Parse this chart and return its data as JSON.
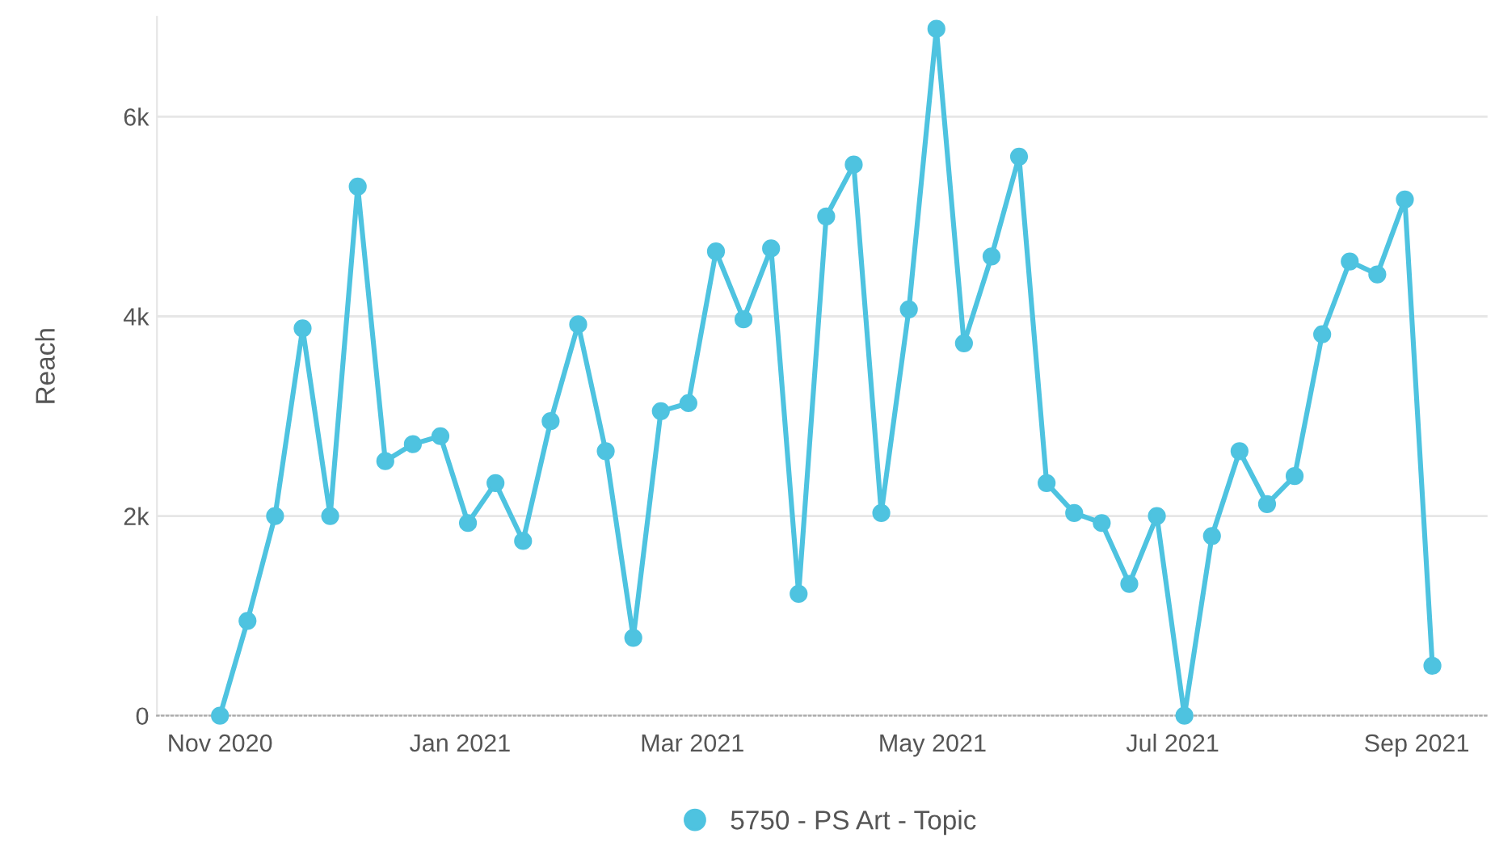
{
  "chart_data": {
    "type": "line",
    "ylabel": "Reach",
    "x": [
      "2020-11-01",
      "2020-11-08",
      "2020-11-15",
      "2020-11-22",
      "2020-11-29",
      "2020-12-06",
      "2020-12-13",
      "2020-12-20",
      "2020-12-27",
      "2021-01-03",
      "2021-01-10",
      "2021-01-17",
      "2021-01-24",
      "2021-01-31",
      "2021-02-07",
      "2021-02-14",
      "2021-02-21",
      "2021-02-28",
      "2021-03-07",
      "2021-03-14",
      "2021-03-21",
      "2021-03-28",
      "2021-04-04",
      "2021-04-11",
      "2021-04-18",
      "2021-04-25",
      "2021-05-02",
      "2021-05-09",
      "2021-05-16",
      "2021-05-23",
      "2021-05-30",
      "2021-06-06",
      "2021-06-13",
      "2021-06-20",
      "2021-06-27",
      "2021-07-04",
      "2021-07-11",
      "2021-07-18",
      "2021-07-25",
      "2021-08-01",
      "2021-08-08",
      "2021-08-15",
      "2021-08-22",
      "2021-08-29",
      "2021-09-05"
    ],
    "series": [
      {
        "name": "5750 - PS Art - Topic",
        "color": "#4ec3e0",
        "values": [
          0,
          950,
          2000,
          3880,
          2000,
          5300,
          2550,
          2720,
          2800,
          1930,
          2330,
          1750,
          2950,
          3920,
          2650,
          780,
          3050,
          3130,
          4650,
          3970,
          4680,
          1220,
          5000,
          5520,
          2030,
          4070,
          6880,
          3730,
          4600,
          5600,
          2330,
          2030,
          1930,
          1320,
          2000,
          0,
          1800,
          2650,
          2120,
          2400,
          3820,
          4550,
          4420,
          5170,
          500
        ]
      }
    ],
    "xlim": [
      "2020-10-16",
      "2021-09-19"
    ],
    "xticks": [
      {
        "value": "2020-11-01",
        "label": "Nov 2020"
      },
      {
        "value": "2021-01-01",
        "label": "Jan 2021"
      },
      {
        "value": "2021-03-01",
        "label": "Mar 2021"
      },
      {
        "value": "2021-05-01",
        "label": "May 2021"
      },
      {
        "value": "2021-07-01",
        "label": "Jul 2021"
      },
      {
        "value": "2021-09-01",
        "label": "Sep 2021"
      }
    ],
    "ylim": [
      0,
      7000
    ],
    "yticks": [
      0,
      {
        "value": 2000,
        "label": "2k"
      },
      {
        "value": 4000,
        "label": "4k"
      },
      {
        "value": 6000,
        "label": "6k"
      }
    ],
    "grid": "y",
    "legend": "bottom",
    "marker": "circle",
    "line_style": "solid"
  }
}
